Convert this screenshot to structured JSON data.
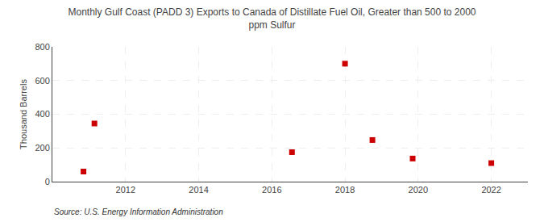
{
  "chart_data": {
    "type": "scatter",
    "title": "Monthly Gulf Coast (PADD 3) Exports to Canada of Distillate Fuel Oil, Greater than 500 to 2000\nppm Sulfur",
    "ylabel": "Thousand Barrels",
    "annotations": [
      "Source: U.S. Energy Information Administration"
    ],
    "x": [
      2010.85,
      2011.15,
      2016.55,
      2018.0,
      2018.75,
      2019.85,
      2022.0
    ],
    "values": [
      60,
      345,
      175,
      700,
      247,
      137,
      110
    ],
    "color": "#cc0000",
    "marker": "square",
    "xlim": [
      2010.0,
      2023.0
    ],
    "ylim": [
      0,
      800
    ],
    "xticks": [
      2012,
      2014,
      2016,
      2018,
      2020,
      2022
    ],
    "yticks": [
      0,
      200,
      400,
      600,
      800
    ],
    "grid": true
  }
}
